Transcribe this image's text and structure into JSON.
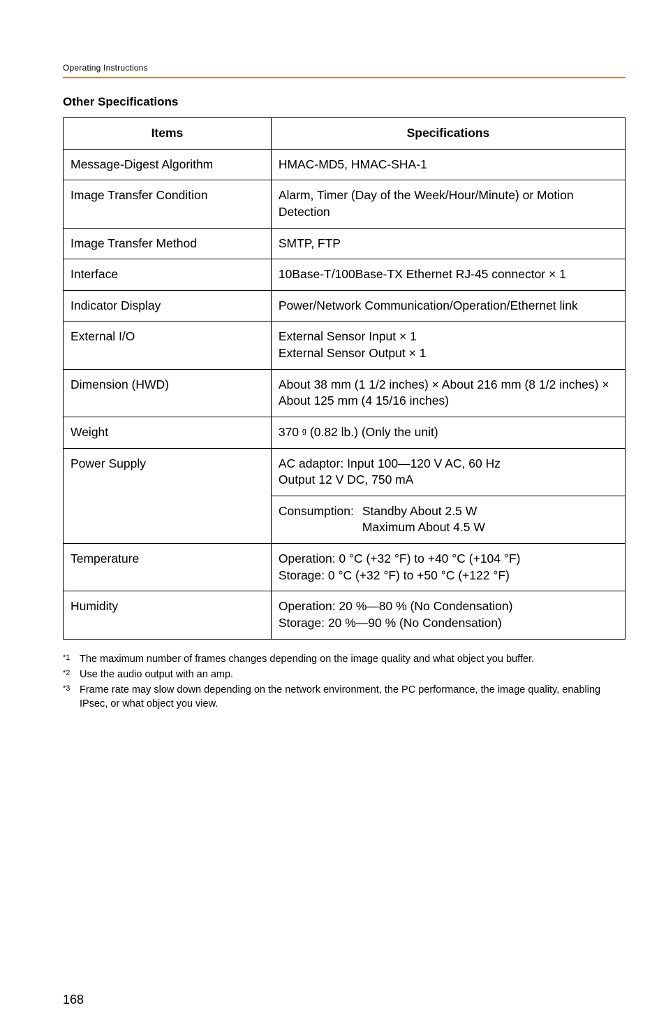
{
  "header": {
    "text": "Operating Instructions"
  },
  "section": {
    "title": "Other Specifications"
  },
  "table": {
    "headers": {
      "items": "Items",
      "specs": "Specifications"
    },
    "rows": [
      {
        "item": "Message-Digest Algorithm",
        "spec": "HMAC-MD5, HMAC-SHA-1"
      },
      {
        "item": "Image Transfer Condition",
        "spec": "Alarm, Timer (Day of the Week/Hour/Minute) or Motion Detection"
      },
      {
        "item": "Image Transfer Method",
        "spec": "SMTP, FTP"
      },
      {
        "item": "Interface",
        "spec": "10Base-T/100Base-TX Ethernet RJ-45 connector × 1"
      },
      {
        "item": "Indicator Display",
        "spec": "Power/Network Communication/Operation/Ethernet link"
      },
      {
        "item": "External I/O",
        "spec_l1": "External Sensor Input × 1",
        "spec_l2": "External Sensor Output × 1"
      },
      {
        "item": "Dimension (HWD)",
        "spec": "About 38 mm (1 1/2 inches) × About 216 mm (8 1/2 inches) × About 125 mm (4 15/16 inches)"
      },
      {
        "item": "Weight",
        "spec_pre": "370 ",
        "spec_unit": "g",
        "spec_post": " (0.82 lb.) (Only the unit)"
      },
      {
        "item": "Power Supply",
        "block1_l1": "AC adaptor: Input 100—120 V AC, 60 Hz",
        "block1_l2": "Output 12 V DC, 750 mA",
        "cons_label": "Consumption:",
        "cons_l1": "Standby About 2.5 W",
        "cons_l2": "Maximum About 4.5 W"
      },
      {
        "item": "Temperature",
        "l1": "Operation: 0 °C (+32 °F) to +40 °C (+104 °F)",
        "l2": "Storage: 0 °C (+32 °F) to +50 °C (+122 °F)"
      },
      {
        "item": "Humidity",
        "l1": "Operation: 20 %—80 % (No Condensation)",
        "l2": "Storage: 20 %—90 % (No Condensation)"
      }
    ]
  },
  "footnotes": [
    {
      "mark": "*1",
      "text": "The maximum number of frames changes depending on the image quality and what object you buffer."
    },
    {
      "mark": "*2",
      "text": "Use the audio output with an amp."
    },
    {
      "mark": "*3",
      "text": "Frame rate may slow down depending on the network environment, the PC performance, the image quality, enabling IPsec, or what object you view."
    }
  ],
  "page_number": "168",
  "colors": {
    "accent": "#d87a3a",
    "border": "#000000",
    "text": "#000000",
    "bg": "#ffffff"
  },
  "fonts": {
    "family": "Arial, Helvetica, sans-serif",
    "body_size_pt": 13,
    "header_size_pt": 9
  }
}
